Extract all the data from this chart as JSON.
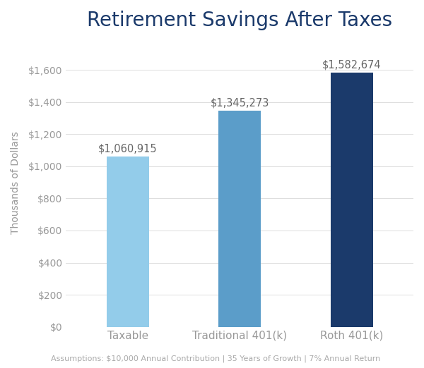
{
  "title": "Retirement Savings After Taxes",
  "categories": [
    "Taxable",
    "Traditional 401(k)",
    "Roth 401(k)"
  ],
  "values": [
    1060915,
    1345273,
    1582674
  ],
  "labels": [
    "$1,060,915",
    "$1,345,273",
    "$1,582,674"
  ],
  "bar_colors": [
    "#93CCEA",
    "#5B9DC9",
    "#1B3A6B"
  ],
  "ylabel": "Thousands of Dollars",
  "ylim": [
    0,
    1800000
  ],
  "yticks": [
    0,
    200000,
    400000,
    600000,
    800000,
    1000000,
    1200000,
    1400000,
    1600000
  ],
  "ytick_labels": [
    "$0",
    "$200",
    "$400",
    "$600",
    "$800",
    "$1,000",
    "$1,200",
    "$1,400",
    "$1,600"
  ],
  "footnote": "Assumptions: $10,000 Annual Contribution | 35 Years of Growth | 7% Annual Return",
  "title_color": "#1B3A6B",
  "axis_label_color": "#999999",
  "tick_label_color": "#999999",
  "bar_label_color": "#666666",
  "footnote_color": "#aaaaaa",
  "background_color": "#ffffff",
  "title_fontsize": 20,
  "ylabel_fontsize": 10,
  "xtick_fontsize": 11,
  "ytick_fontsize": 10,
  "bar_label_fontsize": 10.5,
  "footnote_fontsize": 8,
  "bar_width": 0.38
}
